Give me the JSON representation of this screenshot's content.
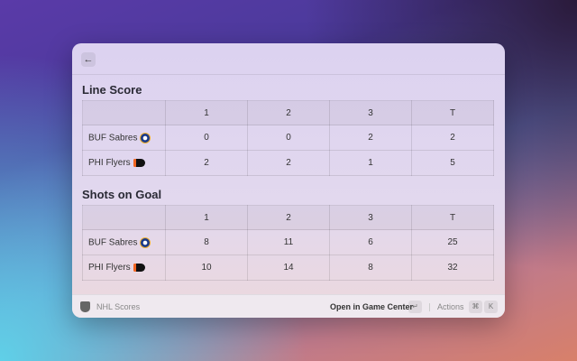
{
  "header": {
    "back_icon": "arrow-left-icon",
    "back_glyph": "←"
  },
  "line_score": {
    "title": "Line Score",
    "columns": [
      "",
      "1",
      "2",
      "3",
      "T"
    ],
    "rows": [
      {
        "team": "BUF Sabres",
        "values": [
          "0",
          "0",
          "2",
          "2"
        ]
      },
      {
        "team": "PHI Flyers",
        "values": [
          "2",
          "2",
          "1",
          "5"
        ]
      }
    ]
  },
  "shots": {
    "title": "Shots on Goal",
    "columns": [
      "",
      "1",
      "2",
      "3",
      "T"
    ],
    "rows": [
      {
        "team": "BUF Sabres",
        "values": [
          "8",
          "11",
          "6",
          "25"
        ]
      },
      {
        "team": "PHI Flyers",
        "values": [
          "10",
          "14",
          "8",
          "32"
        ]
      }
    ]
  },
  "footer": {
    "app_name": "NHL Scores",
    "primary_action": "Open in Game Center",
    "enter_key": "↵",
    "actions_label": "Actions",
    "cmd_key": "⌘",
    "k_key": "K"
  }
}
